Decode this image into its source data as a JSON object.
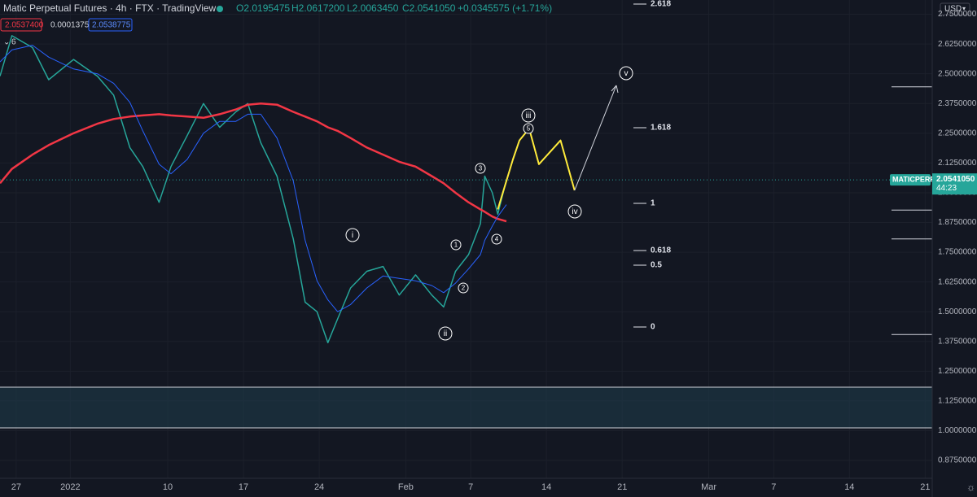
{
  "header": {
    "title": "Matic Perpetual Futures · 4h · FTX · TradingView",
    "ohlc": [
      "O2.0195475",
      "H2.0617200",
      "L2.0063450",
      "C2.0541050",
      "+0.0345575 (+1.71%)"
    ],
    "indicators": [
      "2.0537400",
      "0.0001375",
      "2.0538775"
    ],
    "collapse": "6"
  },
  "price_tag": {
    "symbol": "MATICPERP",
    "price": "2.0541050",
    "countdown": "44:23"
  },
  "currency": "USD",
  "chart_data": {
    "type": "line",
    "x": [
      -1.5,
      -0.4,
      1.5,
      3.0,
      5.3,
      7.5,
      9.0,
      10.5,
      11.7,
      13.2,
      14.3,
      15.8,
      17.3,
      18.8,
      20.3,
      21.4,
      22.6,
      24.1,
      25.6,
      26.7,
      27.8,
      28.8,
      29.7,
      30.9,
      32.4,
      33.9,
      35.4,
      36.9,
      38.4,
      39.5,
      40.6,
      41.8,
      42.9,
      43.3,
      44.0,
      44.5,
      45.3
    ],
    "series": [
      {
        "name": "MATICPERP",
        "color": "#26a69a",
        "values": [
          2.49,
          2.66,
          2.61,
          2.475,
          2.56,
          2.49,
          2.41,
          2.19,
          2.11,
          1.96,
          2.11,
          2.24,
          2.375,
          2.275,
          2.34,
          2.375,
          2.21,
          2.07,
          1.806,
          1.54,
          1.5,
          1.37,
          1.47,
          1.6,
          1.67,
          1.69,
          1.57,
          1.655,
          1.57,
          1.52,
          1.67,
          1.74,
          1.87,
          2.07,
          2.0,
          1.91,
          2.054
        ]
      },
      {
        "name": "MA 200",
        "color": "#f23645",
        "values": [
          2.04,
          2.1,
          2.16,
          2.2,
          2.25,
          2.29,
          2.31,
          2.32,
          2.325,
          2.33,
          2.325,
          2.32,
          2.315,
          2.33,
          2.35,
          2.37,
          2.375,
          2.37,
          2.34,
          2.32,
          2.3,
          2.275,
          2.26,
          2.23,
          2.19,
          2.16,
          2.13,
          2.11,
          2.07,
          2.04,
          2.0,
          1.96,
          1.93,
          1.92,
          1.9,
          1.89,
          1.88
        ]
      },
      {
        "name": "MA 20",
        "color": "#2962ff",
        "values": [
          2.55,
          2.6,
          2.62,
          2.57,
          2.52,
          2.5,
          2.46,
          2.38,
          2.26,
          2.12,
          2.08,
          2.14,
          2.25,
          2.3,
          2.3,
          2.33,
          2.33,
          2.23,
          2.05,
          1.8,
          1.63,
          1.55,
          1.5,
          1.53,
          1.6,
          1.65,
          1.64,
          1.63,
          1.61,
          1.58,
          1.62,
          1.68,
          1.74,
          1.8,
          1.86,
          1.9,
          1.95
        ]
      }
    ],
    "projection": {
      "x": [
        44.5,
        45.9,
        46.5,
        47.4,
        48.3,
        50.3,
        51.6
      ],
      "values": [
        1.93,
        2.14,
        2.22,
        2.27,
        2.12,
        2.22,
        2.01
      ],
      "color": "#ffeb3b"
    },
    "levels": [
      2.445,
      1.927,
      1.806,
      1.404
    ],
    "zone": [
      1.183,
      1.012
    ],
    "fib_levels": [
      2.618,
      1.618,
      1,
      0.618,
      0.5,
      0
    ],
    "waves": [
      "i",
      "ii",
      "iii",
      "iv",
      "v",
      "1",
      "2",
      "3",
      "4",
      "5"
    ],
    "xlim": [
      -1.5,
      84.65
    ],
    "ylim": [
      0.8,
      2.81
    ],
    "xticks": [
      {
        "value": 0,
        "label": "27"
      },
      {
        "value": 5,
        "label": "2022"
      },
      {
        "value": 14,
        "label": "10"
      },
      {
        "value": 21,
        "label": "17"
      },
      {
        "value": 28,
        "label": "24"
      },
      {
        "value": 36,
        "label": "Feb"
      },
      {
        "value": 42,
        "label": "7"
      },
      {
        "value": 49,
        "label": "14"
      },
      {
        "value": 56,
        "label": "21"
      },
      {
        "value": 64,
        "label": "Mar"
      },
      {
        "value": 70,
        "label": "7"
      },
      {
        "value": 77,
        "label": "14"
      },
      {
        "value": 84,
        "label": "21"
      }
    ],
    "yticks": [
      {
        "value": 2.75,
        "label": "2.7500000"
      },
      {
        "value": 2.625,
        "label": "2.6250000"
      },
      {
        "value": 2.5,
        "label": "2.5000000"
      },
      {
        "value": 2.375,
        "label": "2.3750000"
      },
      {
        "value": 2.25,
        "label": "2.2500000"
      },
      {
        "value": 2.125,
        "label": "2.1250000"
      },
      {
        "value": 2.0,
        "label": "2.0000000"
      },
      {
        "value": 1.875,
        "label": "1.8750000"
      },
      {
        "value": 1.75,
        "label": "1.7500000"
      },
      {
        "value": 1.625,
        "label": "1.6250000"
      },
      {
        "value": 1.5,
        "label": "1.5000000"
      },
      {
        "value": 1.375,
        "label": "1.3750000"
      },
      {
        "value": 1.25,
        "label": "1.2500000"
      },
      {
        "value": 1.125,
        "label": "1.1250000"
      },
      {
        "value": 1.0,
        "label": "1.0000000"
      },
      {
        "value": 0.875,
        "label": "0.8750000"
      }
    ],
    "grid": true
  }
}
